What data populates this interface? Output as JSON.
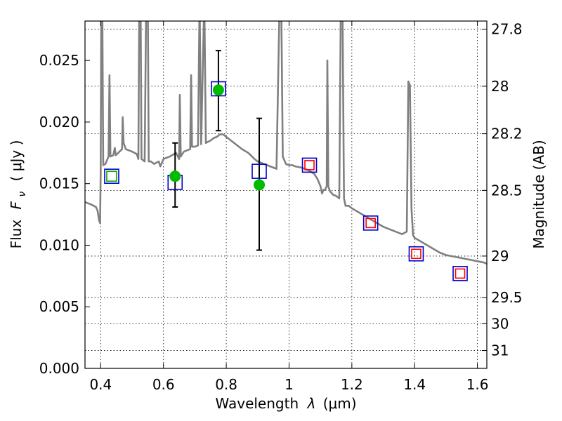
{
  "chart_data": {
    "type": "scatter",
    "xlabel_prefix": "Wavelength",
    "xlabel_symbol": "λ",
    "xlabel_unit": "(μm)",
    "ylabel_prefix": "Flux",
    "ylabel_symbol": "F",
    "ylabel_subscript": "ν",
    "ylabel_unit": "( μJy )",
    "ylabel_right": "Magnitude (AB)",
    "xlim": [
      0.35,
      1.63
    ],
    "ylim": [
      0.0,
      0.0282
    ],
    "grid": true,
    "x_ticks": [
      0.4,
      0.6,
      0.8,
      1.0,
      1.2,
      1.4,
      1.6
    ],
    "x_tick_labels": [
      "0.4",
      "0.6",
      "0.8",
      "1",
      "1.2",
      "1.4",
      "1.6"
    ],
    "y_ticks": [
      0.0,
      0.005,
      0.01,
      0.015,
      0.02,
      0.025
    ],
    "y_tick_labels": [
      "0.000",
      "0.005",
      "0.010",
      "0.015",
      "0.020",
      "0.025"
    ],
    "right_ticks": [
      {
        "label": "27.8",
        "flux": 0.02754
      },
      {
        "label": "28",
        "flux": 0.02291
      },
      {
        "label": "28.2",
        "flux": 0.01905
      },
      {
        "label": "28.5",
        "flux": 0.01445
      },
      {
        "label": "29",
        "flux": 0.00912
      },
      {
        "label": "29.5",
        "flux": 0.00575
      },
      {
        "label": "30",
        "flux": 0.00363
      },
      {
        "label": "31",
        "flux": 0.00145
      }
    ],
    "series": [
      {
        "kind": "line",
        "color": "#808080",
        "points": [
          [
            0.35,
            0.0135
          ],
          [
            0.37,
            0.0133
          ],
          [
            0.385,
            0.0131
          ],
          [
            0.39,
            0.0128
          ],
          [
            0.395,
            0.012
          ],
          [
            0.398,
            0.0118
          ],
          [
            0.4,
            0.016
          ],
          [
            0.402,
            0.03
          ],
          [
            0.405,
            0.03
          ],
          [
            0.408,
            0.0165
          ],
          [
            0.415,
            0.0166
          ],
          [
            0.425,
            0.0172
          ],
          [
            0.428,
            0.0238
          ],
          [
            0.431,
            0.0172
          ],
          [
            0.44,
            0.0173
          ],
          [
            0.445,
            0.0179
          ],
          [
            0.448,
            0.0173
          ],
          [
            0.46,
            0.0176
          ],
          [
            0.468,
            0.0178
          ],
          [
            0.47,
            0.0204
          ],
          [
            0.473,
            0.0183
          ],
          [
            0.48,
            0.0178
          ],
          [
            0.5,
            0.0176
          ],
          [
            0.515,
            0.0174
          ],
          [
            0.52,
            0.017
          ],
          [
            0.523,
            0.03
          ],
          [
            0.527,
            0.03
          ],
          [
            0.53,
            0.017
          ],
          [
            0.54,
            0.0168
          ],
          [
            0.545,
            0.03
          ],
          [
            0.55,
            0.03
          ],
          [
            0.553,
            0.0168
          ],
          [
            0.56,
            0.0168
          ],
          [
            0.57,
            0.0166
          ],
          [
            0.585,
            0.0168
          ],
          [
            0.59,
            0.0164
          ],
          [
            0.6,
            0.017
          ],
          [
            0.62,
            0.0172
          ],
          [
            0.64,
            0.0175
          ],
          [
            0.65,
            0.017
          ],
          [
            0.652,
            0.0222
          ],
          [
            0.655,
            0.0172
          ],
          [
            0.665,
            0.0176
          ],
          [
            0.685,
            0.0178
          ],
          [
            0.688,
            0.0238
          ],
          [
            0.691,
            0.018
          ],
          [
            0.7,
            0.018
          ],
          [
            0.71,
            0.0181
          ],
          [
            0.715,
            0.03
          ],
          [
            0.72,
            0.0182
          ],
          [
            0.73,
            0.03
          ],
          [
            0.735,
            0.0183
          ],
          [
            0.75,
            0.0185
          ],
          [
            0.76,
            0.0187
          ],
          [
            0.77,
            0.0188
          ],
          [
            0.78,
            0.019
          ],
          [
            0.79,
            0.019
          ],
          [
            0.8,
            0.0188
          ],
          [
            0.81,
            0.0186
          ],
          [
            0.82,
            0.0184
          ],
          [
            0.83,
            0.0182
          ],
          [
            0.84,
            0.018
          ],
          [
            0.85,
            0.0178
          ],
          [
            0.87,
            0.0175
          ],
          [
            0.89,
            0.017
          ],
          [
            0.9,
            0.0168
          ],
          [
            0.91,
            0.0167
          ],
          [
            0.92,
            0.0166
          ],
          [
            0.93,
            0.0165
          ],
          [
            0.94,
            0.0164
          ],
          [
            0.95,
            0.0163
          ],
          [
            0.96,
            0.0162
          ],
          [
            0.97,
            0.03
          ],
          [
            0.975,
            0.03
          ],
          [
            0.98,
            0.0172
          ],
          [
            0.99,
            0.0166
          ],
          [
            1.0,
            0.0165
          ],
          [
            1.01,
            0.0165
          ],
          [
            1.02,
            0.0164
          ],
          [
            1.04,
            0.0163
          ],
          [
            1.06,
            0.0161
          ],
          [
            1.08,
            0.0158
          ],
          [
            1.09,
            0.0154
          ],
          [
            1.1,
            0.0148
          ],
          [
            1.105,
            0.0142
          ],
          [
            1.11,
            0.0145
          ],
          [
            1.115,
            0.0145
          ],
          [
            1.12,
            0.0148
          ],
          [
            1.122,
            0.025
          ],
          [
            1.125,
            0.0148
          ],
          [
            1.13,
            0.0144
          ],
          [
            1.14,
            0.0141
          ],
          [
            1.15,
            0.014
          ],
          [
            1.16,
            0.0138
          ],
          [
            1.165,
            0.03
          ],
          [
            1.17,
            0.03
          ],
          [
            1.175,
            0.0138
          ],
          [
            1.18,
            0.0132
          ],
          [
            1.19,
            0.0132
          ],
          [
            1.2,
            0.013
          ],
          [
            1.22,
            0.0127
          ],
          [
            1.24,
            0.0124
          ],
          [
            1.26,
            0.0121
          ],
          [
            1.28,
            0.0118
          ],
          [
            1.3,
            0.0115
          ],
          [
            1.32,
            0.0113
          ],
          [
            1.34,
            0.0111
          ],
          [
            1.36,
            0.0109
          ],
          [
            1.375,
            0.0111
          ],
          [
            1.38,
            0.0233
          ],
          [
            1.385,
            0.023
          ],
          [
            1.39,
            0.013
          ],
          [
            1.395,
            0.0108
          ],
          [
            1.4,
            0.0106
          ],
          [
            1.42,
            0.0103
          ],
          [
            1.44,
            0.01
          ],
          [
            1.46,
            0.0097
          ],
          [
            1.48,
            0.0094
          ],
          [
            1.5,
            0.0092
          ],
          [
            1.52,
            0.0091
          ],
          [
            1.54,
            0.009
          ],
          [
            1.56,
            0.0089
          ],
          [
            1.58,
            0.0088
          ],
          [
            1.6,
            0.0087
          ],
          [
            1.62,
            0.0086
          ],
          [
            1.63,
            0.0085
          ]
        ]
      },
      {
        "kind": "errorbar",
        "color": "#000000",
        "points": [
          {
            "x": 0.637,
            "low": 0.0131,
            "high": 0.0183
          },
          {
            "x": 0.775,
            "low": 0.0193,
            "high": 0.0258
          },
          {
            "x": 0.905,
            "low": 0.0096,
            "high": 0.0203
          }
        ]
      },
      {
        "kind": "marker",
        "shape": "square",
        "edge": "#0000cc",
        "size": 20,
        "points": [
          [
            0.435,
            0.0156
          ],
          [
            0.637,
            0.0151
          ],
          [
            0.775,
            0.0227
          ],
          [
            0.905,
            0.016
          ],
          [
            1.065,
            0.0165
          ],
          [
            1.26,
            0.0118
          ],
          [
            1.405,
            0.0093
          ],
          [
            1.545,
            0.0077
          ]
        ]
      },
      {
        "kind": "marker",
        "shape": "square",
        "edge": "#00aa00",
        "size": 14,
        "points": [
          [
            0.435,
            0.0156
          ]
        ]
      },
      {
        "kind": "marker",
        "shape": "square",
        "edge": "#ff0000",
        "size": 13,
        "points": [
          [
            1.065,
            0.0165
          ],
          [
            1.26,
            0.0118
          ],
          [
            1.405,
            0.0093
          ],
          [
            1.545,
            0.0077
          ]
        ]
      },
      {
        "kind": "marker",
        "shape": "circle",
        "fill": "#00bb00",
        "size": 15,
        "points": [
          [
            0.637,
            0.0156
          ],
          [
            0.775,
            0.0226
          ],
          [
            0.905,
            0.0149
          ]
        ]
      }
    ]
  }
}
